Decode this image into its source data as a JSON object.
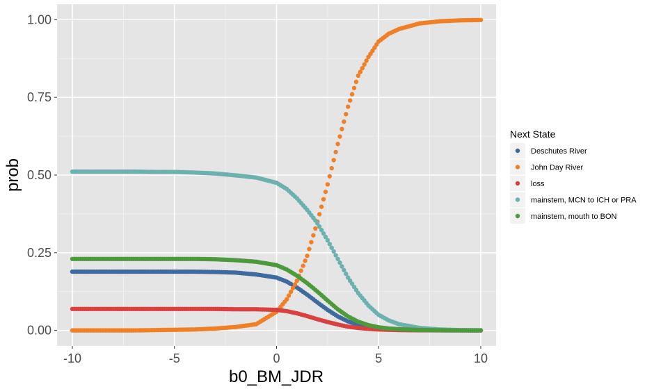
{
  "chart_data": {
    "type": "scatter",
    "xlabel": "b0_BM_JDR",
    "ylabel": "prob",
    "xlim": [
      -10.75,
      10.75
    ],
    "ylim": [
      -0.05,
      1.05
    ],
    "x_ticks": [
      -10,
      -5,
      0,
      5,
      10
    ],
    "x_tick_labels": [
      "-10",
      "-5",
      "0",
      "5",
      "10"
    ],
    "y_ticks": [
      0,
      0.25,
      0.5,
      0.75,
      1.0
    ],
    "y_tick_labels": [
      "0.00",
      "0.25",
      "0.50",
      "0.75",
      "1.00"
    ],
    "grid": true,
    "legend": {
      "title": "Next State",
      "position": "right",
      "entries": [
        "Deschutes River",
        "John Day River",
        "loss",
        "mainstem, MCN to ICH or PRA",
        "mainstem, mouth to BON"
      ]
    },
    "x": [
      -10,
      -9,
      -8,
      -7,
      -6,
      -5,
      -4,
      -3,
      -2,
      -1,
      0,
      0.5,
      1,
      1.5,
      2,
      2.5,
      3,
      3.5,
      4,
      4.5,
      5,
      5.5,
      6,
      7,
      8,
      9,
      10
    ],
    "series": [
      {
        "name": "Deschutes River",
        "color": "#3f6a9f",
        "values": [
          0.189,
          0.189,
          0.189,
          0.189,
          0.189,
          0.189,
          0.189,
          0.188,
          0.186,
          0.18,
          0.17,
          0.157,
          0.138,
          0.115,
          0.09,
          0.066,
          0.045,
          0.029,
          0.018,
          0.011,
          0.007,
          0.004,
          0.003,
          0.001,
          0.0005,
          0.0002,
          0.0001
        ]
      },
      {
        "name": "John Day River",
        "color": "#f07f25",
        "values": [
          0.0,
          0.0,
          0.0,
          0.0,
          0.001,
          0.002,
          0.003,
          0.006,
          0.011,
          0.02,
          0.06,
          0.1,
          0.16,
          0.24,
          0.35,
          0.47,
          0.6,
          0.72,
          0.82,
          0.88,
          0.93,
          0.955,
          0.97,
          0.988,
          0.995,
          0.998,
          0.999
        ]
      },
      {
        "name": "loss",
        "color": "#d94040",
        "values": [
          0.069,
          0.069,
          0.069,
          0.069,
          0.069,
          0.069,
          0.069,
          0.069,
          0.068,
          0.068,
          0.066,
          0.062,
          0.055,
          0.046,
          0.036,
          0.027,
          0.019,
          0.012,
          0.008,
          0.005,
          0.003,
          0.002,
          0.001,
          0.0005,
          0.0002,
          0.0001,
          0.0
        ]
      },
      {
        "name": "mainstem, MCN to ICH or PRA",
        "color": "#6bb1ad",
        "values": [
          0.511,
          0.511,
          0.511,
          0.511,
          0.51,
          0.51,
          0.508,
          0.505,
          0.499,
          0.492,
          0.475,
          0.455,
          0.425,
          0.388,
          0.345,
          0.29,
          0.23,
          0.17,
          0.12,
          0.08,
          0.05,
          0.032,
          0.02,
          0.008,
          0.003,
          0.001,
          0.0005
        ]
      },
      {
        "name": "mainstem, mouth to BON",
        "color": "#4d9a3c",
        "values": [
          0.23,
          0.23,
          0.23,
          0.23,
          0.23,
          0.23,
          0.23,
          0.229,
          0.226,
          0.221,
          0.21,
          0.196,
          0.176,
          0.152,
          0.125,
          0.096,
          0.068,
          0.045,
          0.028,
          0.017,
          0.01,
          0.006,
          0.004,
          0.0015,
          0.0006,
          0.0002,
          0.0001
        ]
      }
    ]
  }
}
